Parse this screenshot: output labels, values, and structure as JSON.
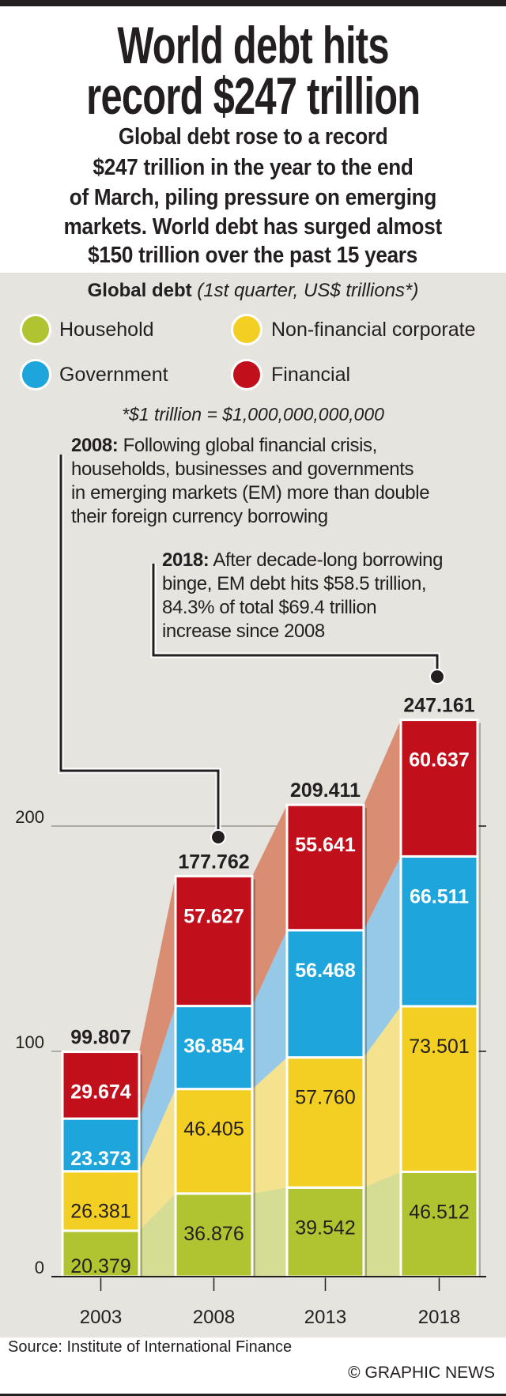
{
  "title": [
    "World debt hits",
    "record $247 trillion"
  ],
  "subtitle": [
    "Global debt rose to a record",
    "$247 trillion in the year to the end",
    "of March, piling pressure on emerging",
    "markets. World debt has surged almost",
    "$150 trillion over the past 15 years"
  ],
  "legend": {
    "title_bold": "Global debt",
    "title_italic": "(1st quarter, US$ trillions*)",
    "items": [
      {
        "label": "Household",
        "color": "#afc430"
      },
      {
        "label": "Non-financial corporate",
        "color": "#f3cf23"
      },
      {
        "label": "Government",
        "color": "#1ea5dc"
      },
      {
        "label": "Financial",
        "color": "#c10f1c"
      }
    ],
    "footnote": "*$1 trillion = $1,000,000,000,000"
  },
  "annotations": [
    {
      "year_label": "2008:",
      "lines": [
        "Following global financial crisis,",
        "households, businesses and governments",
        "in emerging markets (EM) more than double",
        "their foreign currency borrowing"
      ]
    },
    {
      "year_label": "2018:",
      "lines": [
        "After decade-long borrowing",
        "binge, EM debt hits $58.5 trillion,",
        "84.3% of total $69.4 trillion",
        "increase since 2008"
      ]
    }
  ],
  "chart_data": {
    "type": "bar",
    "stacked": true,
    "title": "Global debt",
    "ylabel": "US$ trillions",
    "categories": [
      "2003",
      "2008",
      "2013",
      "2018"
    ],
    "series": [
      {
        "name": "Household",
        "color": "#afc430",
        "ribbon": "#d5dc94",
        "labels": [
          "20.379",
          "36.876",
          "39.542",
          "46.512"
        ],
        "values": [
          20.379,
          36.876,
          39.542,
          46.512
        ],
        "label_color": "#231f20",
        "bold": false
      },
      {
        "name": "Non-financial corporate",
        "color": "#f3cf23",
        "ribbon": "#f4e28f",
        "labels": [
          "26.381",
          "46.405",
          "57.760",
          "73.501"
        ],
        "values": [
          26.381,
          46.405,
          57.76,
          73.501
        ],
        "label_color": "#231f20",
        "bold": false
      },
      {
        "name": "Government",
        "color": "#1ea5dc",
        "ribbon": "#96c8e8",
        "labels": [
          "23.373",
          "36.854",
          "56.468",
          "66.511"
        ],
        "values": [
          23.373,
          36.854,
          56.468,
          66.511
        ],
        "label_color": "#ffffff",
        "bold": true
      },
      {
        "name": "Financial",
        "color": "#c10f1c",
        "ribbon": "#d98e74",
        "labels": [
          "29.674",
          "57.627",
          "55.641",
          "60.637"
        ],
        "values": [
          29.674,
          57.627,
          55.641,
          60.637
        ],
        "label_color": "#ffffff",
        "bold": true
      }
    ],
    "totals": [
      "99.807",
      "177.762",
      "209.411",
      "247.161"
    ],
    "yticks": [
      0,
      100,
      200
    ],
    "ytick_labels": [
      "0",
      "100",
      "200"
    ],
    "ylim": [
      0,
      250
    ],
    "grid": true
  },
  "source": "Source: Institute of International Finance",
  "copyright": "© GRAPHIC NEWS"
}
